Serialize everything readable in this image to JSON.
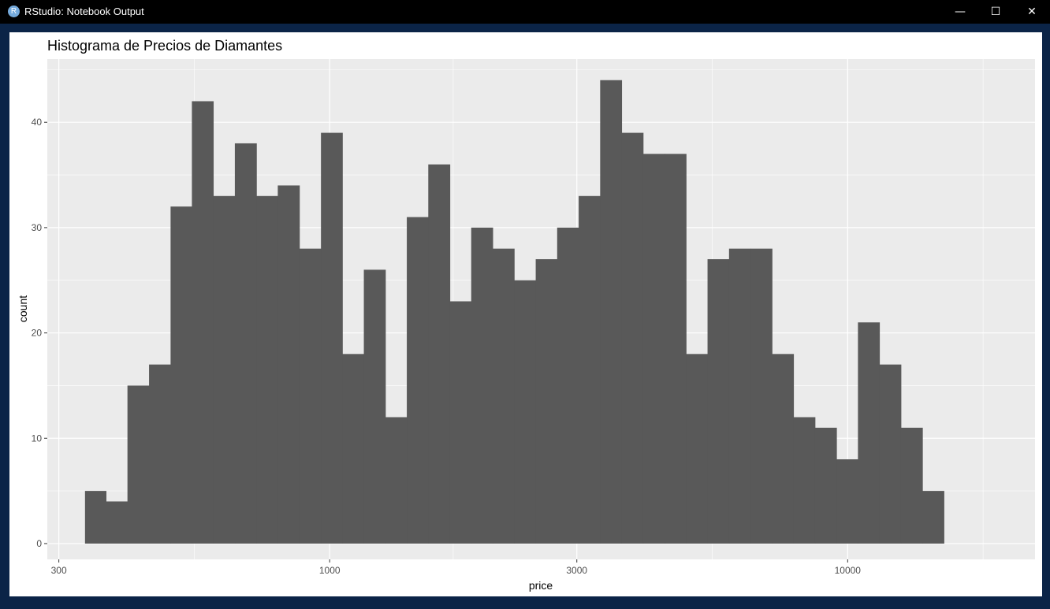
{
  "window": {
    "title": "RStudio: Notebook Output",
    "icon": "R",
    "controls": {
      "minimize": "—",
      "maximize": "☐",
      "close": "✕"
    }
  },
  "chart_data": {
    "type": "bar",
    "title": "Histograma de Precios de Diamantes",
    "xlabel": "price",
    "ylabel": "count",
    "x_scale": "log10",
    "xlim": [
      285,
      23000
    ],
    "ylim": [
      -1.5,
      46
    ],
    "x_ticks": [
      300,
      1000,
      3000,
      10000
    ],
    "x_tick_labels": [
      "300",
      "1000",
      "3000",
      "10000"
    ],
    "y_ticks": [
      0,
      10,
      20,
      30,
      40
    ],
    "y_tick_labels": [
      "0",
      "10",
      "20",
      "30",
      "40"
    ],
    "grid": true,
    "bar_color": "#595959",
    "panel_color": "#ebebeb",
    "bins": [
      {
        "xmin": 337,
        "xmax": 370,
        "count": 5
      },
      {
        "xmin": 370,
        "xmax": 407,
        "count": 4
      },
      {
        "xmin": 407,
        "xmax": 448,
        "count": 15
      },
      {
        "xmin": 448,
        "xmax": 493,
        "count": 17
      },
      {
        "xmin": 493,
        "xmax": 542,
        "count": 32
      },
      {
        "xmin": 542,
        "xmax": 596,
        "count": 42
      },
      {
        "xmin": 596,
        "xmax": 656,
        "count": 33
      },
      {
        "xmin": 656,
        "xmax": 722,
        "count": 38
      },
      {
        "xmin": 722,
        "xmax": 794,
        "count": 33
      },
      {
        "xmin": 794,
        "xmax": 874,
        "count": 34
      },
      {
        "xmin": 874,
        "xmax": 962,
        "count": 28
      },
      {
        "xmin": 962,
        "xmax": 1058,
        "count": 39
      },
      {
        "xmin": 1058,
        "xmax": 1164,
        "count": 18
      },
      {
        "xmin": 1164,
        "xmax": 1281,
        "count": 26
      },
      {
        "xmin": 1281,
        "xmax": 1409,
        "count": 12
      },
      {
        "xmin": 1409,
        "xmax": 1550,
        "count": 31
      },
      {
        "xmin": 1550,
        "xmax": 1706,
        "count": 36
      },
      {
        "xmin": 1706,
        "xmax": 1876,
        "count": 23
      },
      {
        "xmin": 1876,
        "xmax": 2064,
        "count": 30
      },
      {
        "xmin": 2064,
        "xmax": 2271,
        "count": 28
      },
      {
        "xmin": 2271,
        "xmax": 2499,
        "count": 25
      },
      {
        "xmin": 2499,
        "xmax": 2749,
        "count": 27
      },
      {
        "xmin": 2749,
        "xmax": 3025,
        "count": 30
      },
      {
        "xmin": 3025,
        "xmax": 3328,
        "count": 33
      },
      {
        "xmin": 3328,
        "xmax": 3661,
        "count": 44
      },
      {
        "xmin": 3661,
        "xmax": 4028,
        "count": 39
      },
      {
        "xmin": 4028,
        "xmax": 4432,
        "count": 37
      },
      {
        "xmin": 4432,
        "xmax": 4876,
        "count": 37
      },
      {
        "xmin": 4876,
        "xmax": 5364,
        "count": 18
      },
      {
        "xmin": 5364,
        "xmax": 5902,
        "count": 27
      },
      {
        "xmin": 5902,
        "xmax": 6493,
        "count": 28
      },
      {
        "xmin": 6493,
        "xmax": 7144,
        "count": 28
      },
      {
        "xmin": 7144,
        "xmax": 7860,
        "count": 18
      },
      {
        "xmin": 7860,
        "xmax": 8648,
        "count": 12
      },
      {
        "xmin": 8648,
        "xmax": 9515,
        "count": 11
      },
      {
        "xmin": 9515,
        "xmax": 10468,
        "count": 8
      },
      {
        "xmin": 10468,
        "xmax": 11517,
        "count": 21
      },
      {
        "xmin": 11517,
        "xmax": 12672,
        "count": 17
      },
      {
        "xmin": 12672,
        "xmax": 13942,
        "count": 11
      },
      {
        "xmin": 13942,
        "xmax": 15339,
        "count": 5
      }
    ]
  }
}
